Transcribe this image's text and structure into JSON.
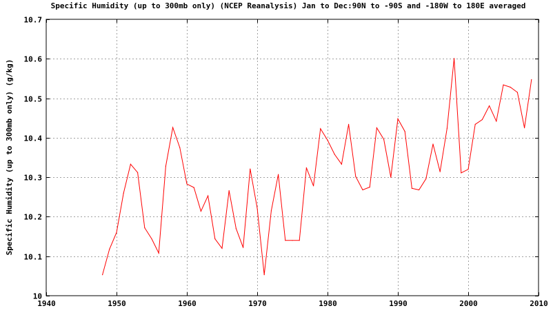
{
  "chart_data": {
    "type": "line",
    "title": "Specific Humidity (up to 300mb only) (NCEP Reanalysis) Jan to Dec:90N to -90S and -180W to 180E averaged",
    "xlabel": "",
    "ylabel": "Specific Humidity (up to 300mb only) (g/kg)",
    "xlim": [
      1940,
      2010
    ],
    "ylim": [
      10.0,
      10.7
    ],
    "xticks": [
      1940,
      1950,
      1960,
      1970,
      1980,
      1990,
      2000,
      2010
    ],
    "yticks": [
      10,
      10.1,
      10.2,
      10.3,
      10.4,
      10.5,
      10.6,
      10.7
    ],
    "ytick_labels": [
      "10",
      "10.1",
      "10.2",
      "10.3",
      "10.4",
      "10.5",
      "10.6",
      "10.7"
    ],
    "grid": true,
    "series": [
      {
        "color": "#ff0000",
        "x": [
          1948,
          1949,
          1950,
          1951,
          1952,
          1953,
          1954,
          1955,
          1956,
          1957,
          1958,
          1959,
          1960,
          1961,
          1962,
          1963,
          1964,
          1965,
          1966,
          1967,
          1968,
          1969,
          1970,
          1971,
          1972,
          1973,
          1974,
          1975,
          1976,
          1977,
          1978,
          1979,
          1980,
          1981,
          1982,
          1983,
          1984,
          1985,
          1986,
          1987,
          1988,
          1989,
          1990,
          1991,
          1992,
          1993,
          1994,
          1995,
          1996,
          1997,
          1998,
          1999,
          2000,
          2001,
          2002,
          2003,
          2004,
          2005,
          2006,
          2007,
          2008,
          2009
        ],
        "y": [
          10.053,
          10.118,
          10.16,
          10.26,
          10.333,
          10.312,
          10.172,
          10.144,
          10.108,
          10.328,
          10.426,
          10.375,
          10.283,
          10.274,
          10.214,
          10.253,
          10.144,
          10.12,
          10.266,
          10.17,
          10.122,
          10.321,
          10.222,
          10.053,
          10.215,
          10.307,
          10.14,
          10.14,
          10.14,
          10.324,
          10.278,
          10.423,
          10.394,
          10.358,
          10.333,
          10.434,
          10.302,
          10.268,
          10.275,
          10.425,
          10.396,
          10.3,
          10.448,
          10.416,
          10.272,
          10.268,
          10.296,
          10.384,
          10.314,
          10.424,
          10.601,
          10.311,
          10.32,
          10.434,
          10.446,
          10.481,
          10.442,
          10.534,
          10.528,
          10.515,
          10.425,
          10.547
        ]
      }
    ]
  },
  "colors": {
    "background": "#ffffff",
    "line": "#ff0000",
    "grid": "#a0a0a0",
    "axis": "#000000"
  }
}
